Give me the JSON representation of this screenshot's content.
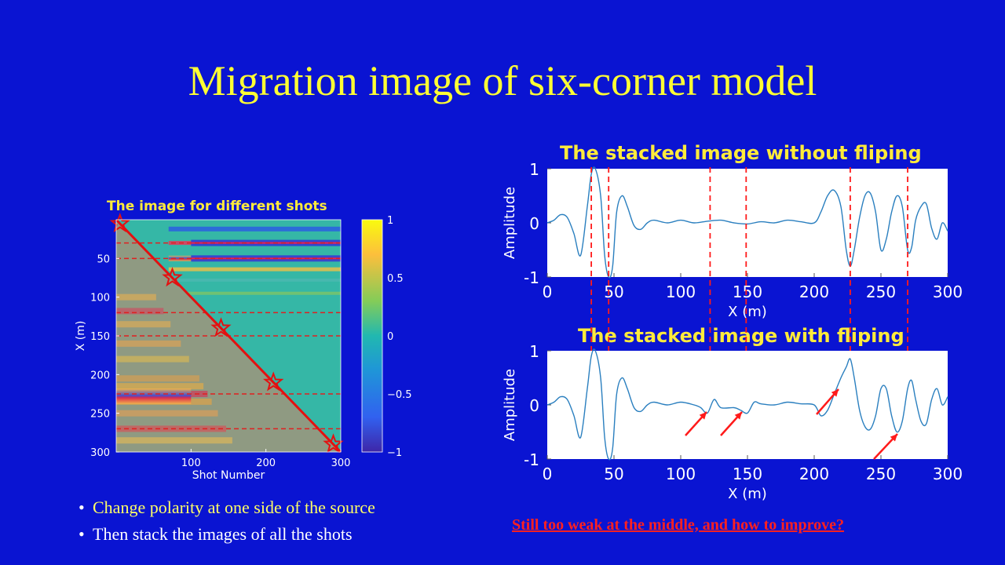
{
  "slide": {
    "title": "Migration image of six-corner model",
    "bullets": [
      {
        "text": "Change polarity at one side of the source",
        "color": "#ffff66"
      },
      {
        "text": "Then stack the images of all the shots",
        "color": "#ffffff"
      }
    ],
    "note": "Still too weak at the middle,  and how to improve?"
  },
  "colors": {
    "background": "#0a14d2",
    "title": "#ffff33",
    "chart_title": "#ffeb3b",
    "line": "#2a7fbf",
    "marker": "#ff1a1a"
  },
  "chart_data": [
    {
      "type": "heatmap",
      "title": "The image for different shots",
      "xlabel": "Shot Number",
      "ylabel": "X (m)",
      "xlim": [
        0,
        300
      ],
      "ylim": [
        300,
        0
      ],
      "xticks": [
        100,
        200,
        300
      ],
      "yticks": [
        50,
        100,
        150,
        200,
        250,
        300
      ],
      "colorbar": {
        "range": [
          -1,
          1
        ],
        "ticks": [
          "1",
          "0.5",
          "0",
          "−0.5",
          "−1"
        ],
        "colormap": "parula"
      },
      "reflector_depths": [
        30,
        50,
        120,
        150,
        225,
        270
      ],
      "source_diagonal": [
        [
          0,
          0
        ],
        [
          300,
          300
        ]
      ],
      "star_markers": [
        [
          5,
          5
        ],
        [
          75,
          75
        ],
        [
          140,
          140
        ],
        [
          210,
          210
        ],
        [
          290,
          290
        ]
      ]
    },
    {
      "type": "line",
      "title": "The stacked image without fliping",
      "xlabel": "X (m)",
      "ylabel": "Amplitude",
      "xlim": [
        0,
        300
      ],
      "ylim": [
        -1,
        1
      ],
      "xticks": [
        0,
        50,
        100,
        150,
        200,
        250,
        300
      ],
      "yticks": [
        -1,
        0,
        1
      ],
      "x": [
        0,
        5,
        10,
        15,
        20,
        25,
        30,
        33,
        36,
        40,
        43,
        46,
        49,
        52,
        56,
        60,
        65,
        70,
        75,
        80,
        90,
        100,
        110,
        120,
        130,
        140,
        150,
        160,
        170,
        180,
        190,
        200,
        205,
        210,
        215,
        220,
        224,
        227,
        230,
        234,
        238,
        242,
        246,
        250,
        254,
        258,
        262,
        266,
        270,
        273,
        276,
        280,
        284,
        288,
        292,
        296,
        300
      ],
      "y": [
        0,
        0.05,
        0.15,
        0.1,
        -0.2,
        -0.6,
        0.3,
        0.9,
        1.0,
        0.5,
        -0.6,
        -1.0,
        -0.8,
        0.2,
        0.5,
        0.3,
        -0.05,
        -0.12,
        0.0,
        0.05,
        0.0,
        0.05,
        0.0,
        0.03,
        0.05,
        0.0,
        -0.02,
        0.02,
        0.0,
        0.05,
        0.02,
        0.0,
        0.2,
        0.5,
        0.6,
        0.3,
        -0.5,
        -0.8,
        -0.5,
        0.1,
        0.5,
        0.55,
        0.2,
        -0.5,
        -0.3,
        0.2,
        0.5,
        0.3,
        -0.5,
        -0.45,
        0.05,
        0.3,
        0.35,
        -0.1,
        -0.3,
        0.0,
        -0.15
      ],
      "markers": [
        33,
        46,
        122,
        149,
        227,
        270
      ]
    },
    {
      "type": "line",
      "title": "The stacked image with fliping",
      "xlabel": "X (m)",
      "ylabel": "Amplitude",
      "xlim": [
        0,
        300
      ],
      "ylim": [
        -1,
        1
      ],
      "xticks": [
        0,
        50,
        100,
        150,
        200,
        250,
        300
      ],
      "yticks": [
        -1,
        0,
        1
      ],
      "x": [
        0,
        5,
        10,
        15,
        20,
        25,
        30,
        33,
        36,
        40,
        43,
        46,
        49,
        52,
        56,
        60,
        65,
        70,
        75,
        80,
        90,
        100,
        110,
        115,
        120,
        125,
        130,
        140,
        145,
        150,
        155,
        160,
        170,
        180,
        190,
        200,
        205,
        210,
        215,
        220,
        224,
        227,
        230,
        234,
        238,
        242,
        246,
        250,
        254,
        258,
        262,
        266,
        270,
        273,
        276,
        280,
        284,
        288,
        292,
        296,
        300
      ],
      "y": [
        0,
        0.05,
        0.15,
        0.1,
        -0.2,
        -0.6,
        0.3,
        0.9,
        1.0,
        0.5,
        -0.6,
        -1.0,
        -0.8,
        0.2,
        0.5,
        0.3,
        -0.05,
        -0.12,
        0.0,
        0.05,
        0.0,
        0.05,
        0.0,
        -0.05,
        -0.15,
        0.1,
        -0.05,
        -0.05,
        -0.1,
        -0.15,
        0.05,
        0.02,
        0.0,
        0.05,
        0.02,
        0.0,
        -0.2,
        -0.1,
        0.2,
        0.5,
        0.7,
        0.85,
        0.5,
        -0.1,
        -0.4,
        -0.45,
        -0.2,
        0.3,
        0.3,
        -0.2,
        -0.5,
        -0.3,
        0.3,
        0.45,
        0.1,
        -0.3,
        -0.35,
        0.1,
        0.3,
        0.0,
        0.15
      ],
      "markers": [
        33,
        46,
        122,
        149,
        227,
        270
      ]
    }
  ]
}
